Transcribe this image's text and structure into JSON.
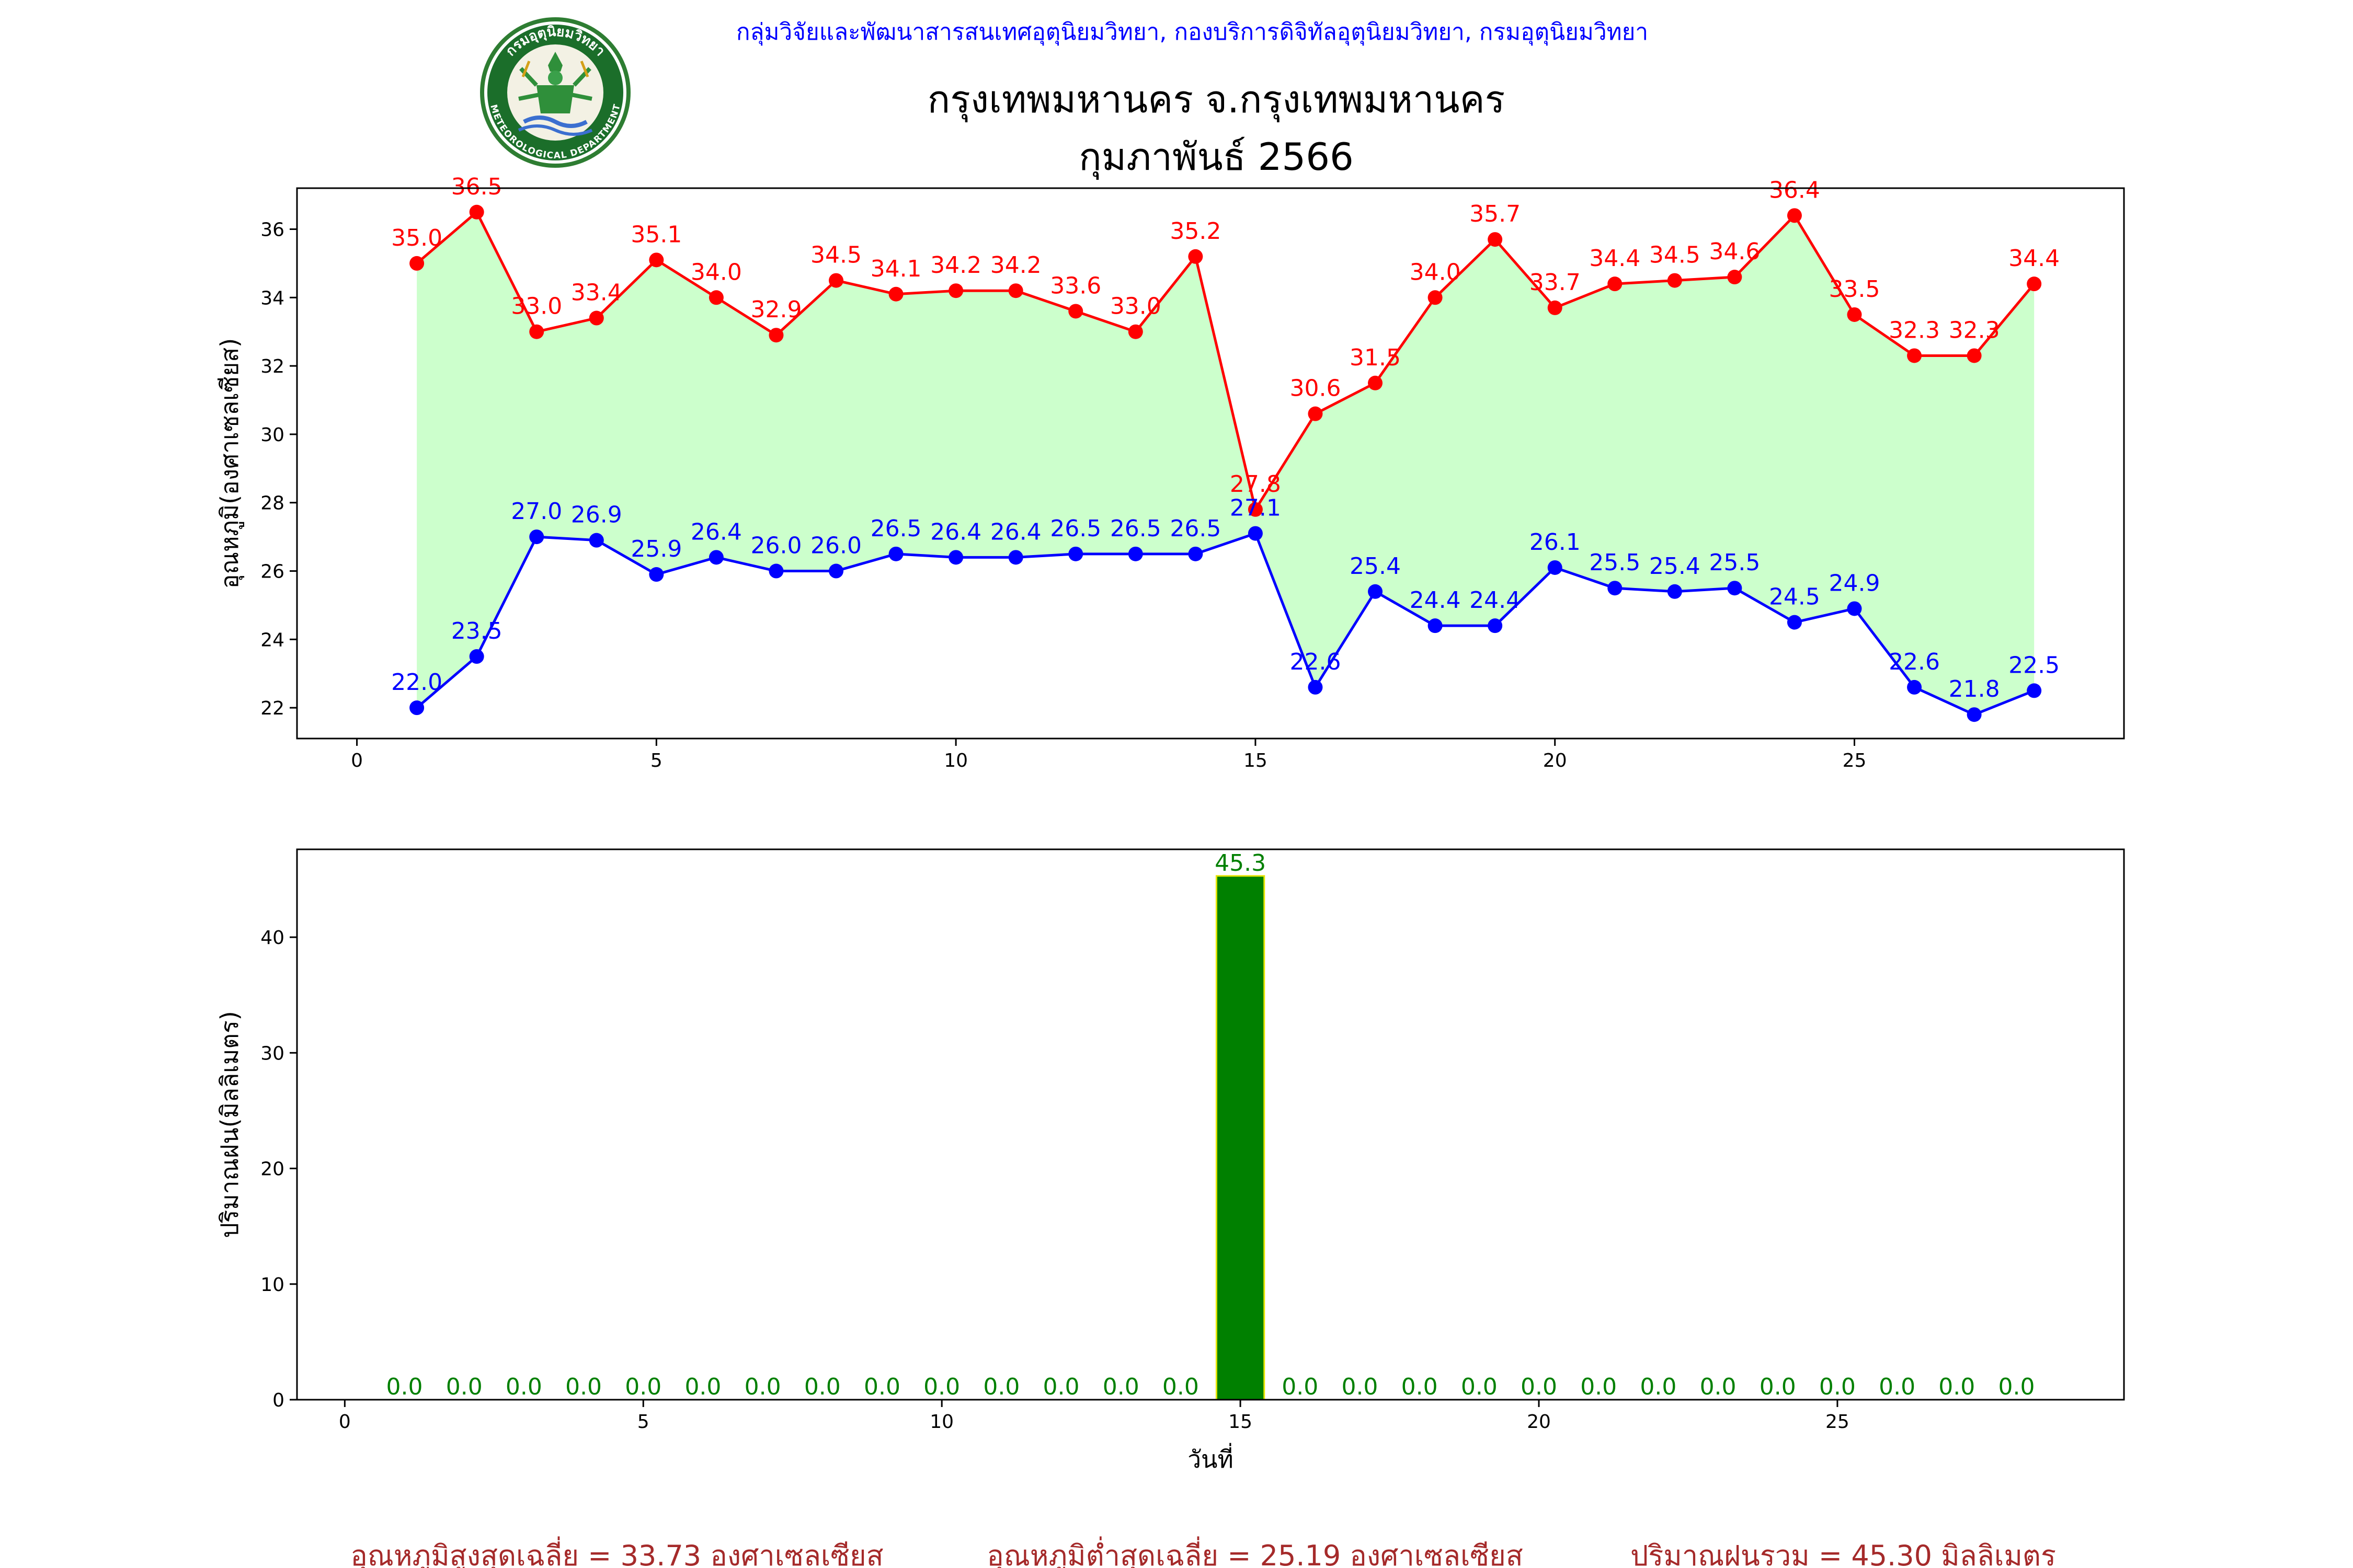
{
  "header": {
    "agency": "กลุ่มวิจัยและพัฒนาสารสนเทศอุตุนิยมวิทยา, กองบริการดิจิทัลอุตุนิยมวิทยา, กรมอุตุนิยมวิทยา",
    "title": "กรุงเทพมหานคร จ.กรุงเทพมหานคร",
    "subtitle": "กุมภาพันธ์ 2566",
    "logo_top_text": "กรมอุตุนิยมวิทยา",
    "logo_bottom_text": "METEOROLOGICAL DEPARTMENT"
  },
  "footer": {
    "avg_max": "อุณหภูมิสูงสุดเฉลี่ย = 33.73 องศาเซลเซียส",
    "avg_min": "อุณหภูมิต่ำสุดเฉลี่ย = 25.19 องศาเซลเซียส",
    "total_rain": "ปริมาณฝนรวม = 45.30 มิลลิเมตร"
  },
  "colors": {
    "max_line": "#ff0000",
    "min_line": "#0000ff",
    "fill": "#ccffcc",
    "rain_bar": "#008000",
    "rain_edge": "#e5e500",
    "rain_label": "#008000"
  },
  "chart_data": [
    {
      "type": "line",
      "ylabel": "อุณหภูมิ(องศาเซลเซียส)",
      "xlim": [
        -1,
        29.5
      ],
      "ylim": [
        21.1,
        37.2
      ],
      "xticks": [
        0,
        5,
        10,
        15,
        20,
        25
      ],
      "yticks": [
        22,
        24,
        26,
        28,
        30,
        32,
        34,
        36
      ],
      "x": [
        1,
        2,
        3,
        4,
        5,
        6,
        7,
        8,
        9,
        10,
        11,
        12,
        13,
        14,
        15,
        16,
        17,
        18,
        19,
        20,
        21,
        22,
        23,
        24,
        25,
        26,
        27,
        28
      ],
      "series": [
        {
          "key": "max",
          "values": [
            35.0,
            36.5,
            33.0,
            33.4,
            35.1,
            34.0,
            32.9,
            34.5,
            34.1,
            34.2,
            34.2,
            33.6,
            33.0,
            35.2,
            27.8,
            30.6,
            31.5,
            34.0,
            35.7,
            33.7,
            34.4,
            34.5,
            34.6,
            36.4,
            33.5,
            32.3,
            32.3,
            34.4
          ]
        },
        {
          "key": "min",
          "values": [
            22.0,
            23.5,
            27.0,
            26.9,
            25.9,
            26.4,
            26.0,
            26.0,
            26.5,
            26.4,
            26.4,
            26.5,
            26.5,
            26.5,
            27.1,
            22.6,
            25.4,
            24.4,
            24.4,
            26.1,
            25.5,
            25.4,
            25.5,
            24.5,
            24.9,
            22.6,
            21.8,
            22.5
          ]
        }
      ]
    },
    {
      "type": "bar",
      "ylabel": "ปริมาณฝน(มิลลิเมตร)",
      "xlabel": "วันที่",
      "xlim": [
        -0.8,
        29.8
      ],
      "ylim": [
        0,
        47.6
      ],
      "xticks": [
        0,
        5,
        10,
        15,
        20,
        25
      ],
      "yticks": [
        0,
        10,
        20,
        30,
        40
      ],
      "x": [
        1,
        2,
        3,
        4,
        5,
        6,
        7,
        8,
        9,
        10,
        11,
        12,
        13,
        14,
        15,
        16,
        17,
        18,
        19,
        20,
        21,
        22,
        23,
        24,
        25,
        26,
        27,
        28
      ],
      "values": [
        0.0,
        0.0,
        0.0,
        0.0,
        0.0,
        0.0,
        0.0,
        0.0,
        0.0,
        0.0,
        0.0,
        0.0,
        0.0,
        0.0,
        45.3,
        0.0,
        0.0,
        0.0,
        0.0,
        0.0,
        0.0,
        0.0,
        0.0,
        0.0,
        0.0,
        0.0,
        0.0,
        0.0
      ]
    }
  ]
}
